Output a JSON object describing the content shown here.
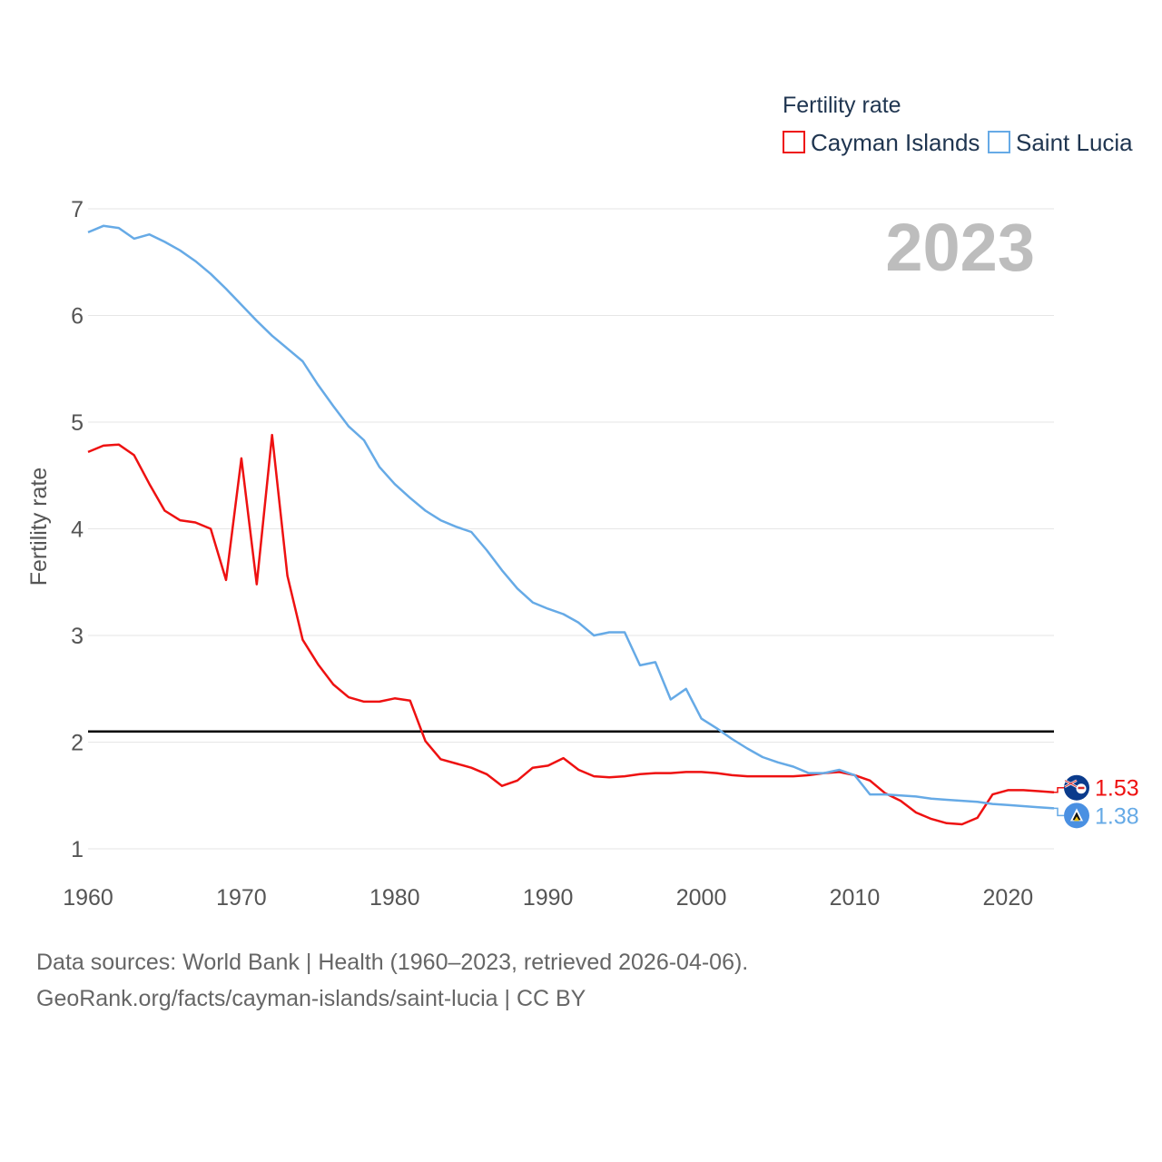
{
  "chart_data": {
    "type": "line",
    "legend_title": "Fertility rate",
    "ylabel": "Fertility rate",
    "year_label": "2023",
    "xlim": [
      1960,
      2023
    ],
    "ylim": [
      1,
      7
    ],
    "yticks": [
      1,
      2,
      3,
      4,
      5,
      6,
      7
    ],
    "xticks": [
      1960,
      1970,
      1980,
      1990,
      2000,
      2010,
      2020
    ],
    "reference_line": {
      "value": 2.1,
      "color": "#000000"
    },
    "years": [
      1960,
      1961,
      1962,
      1963,
      1964,
      1965,
      1966,
      1967,
      1968,
      1969,
      1970,
      1971,
      1972,
      1973,
      1974,
      1975,
      1976,
      1977,
      1978,
      1979,
      1980,
      1981,
      1982,
      1983,
      1984,
      1985,
      1986,
      1987,
      1988,
      1989,
      1990,
      1991,
      1992,
      1993,
      1994,
      1995,
      1996,
      1997,
      1998,
      1999,
      2000,
      2001,
      2002,
      2003,
      2004,
      2005,
      2006,
      2007,
      2008,
      2009,
      2010,
      2011,
      2012,
      2013,
      2014,
      2015,
      2016,
      2017,
      2018,
      2019,
      2020,
      2021,
      2022,
      2023
    ],
    "series": [
      {
        "name": "Cayman Islands",
        "color": "#ee1111",
        "end_label": "1.53",
        "values": [
          4.72,
          4.78,
          4.79,
          4.69,
          4.42,
          4.17,
          4.08,
          4.06,
          4.0,
          3.52,
          4.66,
          3.48,
          4.88,
          3.56,
          2.96,
          2.73,
          2.54,
          2.42,
          2.38,
          2.38,
          2.41,
          2.39,
          2.01,
          1.84,
          1.8,
          1.76,
          1.7,
          1.59,
          1.64,
          1.76,
          1.78,
          1.85,
          1.74,
          1.68,
          1.67,
          1.68,
          1.7,
          1.71,
          1.71,
          1.72,
          1.72,
          1.71,
          1.69,
          1.68,
          1.68,
          1.68,
          1.68,
          1.69,
          1.71,
          1.72,
          1.69,
          1.64,
          1.52,
          1.45,
          1.34,
          1.28,
          1.24,
          1.23,
          1.29,
          1.51,
          1.55,
          1.55,
          1.54,
          1.53
        ]
      },
      {
        "name": "Saint Lucia",
        "color": "#66aae6",
        "end_label": "1.38",
        "values": [
          6.78,
          6.84,
          6.82,
          6.72,
          6.76,
          6.69,
          6.61,
          6.51,
          6.39,
          6.25,
          6.1,
          5.95,
          5.81,
          5.69,
          5.57,
          5.35,
          5.15,
          4.96,
          4.83,
          4.58,
          4.42,
          4.29,
          4.17,
          4.08,
          4.02,
          3.97,
          3.8,
          3.61,
          3.44,
          3.31,
          3.25,
          3.2,
          3.12,
          3.0,
          3.03,
          3.03,
          2.72,
          2.75,
          2.4,
          2.5,
          2.22,
          2.13,
          2.03,
          1.94,
          1.86,
          1.81,
          1.77,
          1.71,
          1.71,
          1.74,
          1.69,
          1.51,
          1.51,
          1.5,
          1.49,
          1.47,
          1.46,
          1.45,
          1.44,
          1.42,
          1.41,
          1.4,
          1.39,
          1.38
        ]
      }
    ]
  },
  "footer": {
    "line1": "Data sources: World Bank | Health (1960–2023, retrieved 2026-04-06).",
    "line2": "GeoRank.org/facts/cayman-islands/saint-lucia | CC BY"
  }
}
